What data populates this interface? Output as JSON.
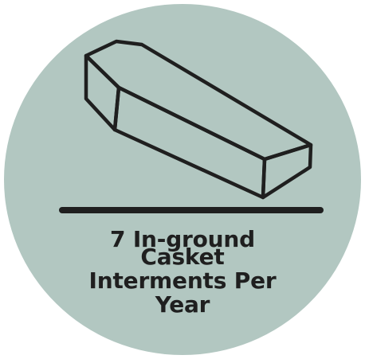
{
  "badge": {
    "background_color": "#b2c7c1",
    "line_color": "#1f1f1f",
    "icon": "casket-icon",
    "caption_lines": [
      "7 In-ground",
      "Casket",
      "Interments Per",
      "Year"
    ]
  }
}
